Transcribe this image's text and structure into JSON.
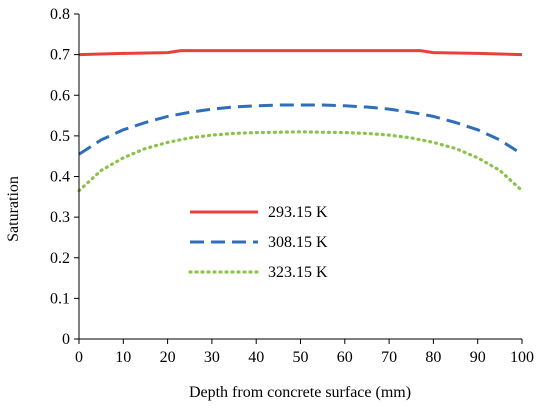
{
  "chart_data": {
    "type": "line",
    "title": "",
    "xlabel": "Depth from concrete surface (mm)",
    "ylabel": "Saturation",
    "xlim": [
      0,
      100
    ],
    "ylim": [
      0,
      0.8
    ],
    "xticks": [
      0,
      10,
      20,
      30,
      40,
      50,
      60,
      70,
      80,
      90,
      100
    ],
    "yticks": [
      0,
      0.1,
      0.2,
      0.3,
      0.4,
      0.5,
      0.6,
      0.7,
      0.8
    ],
    "ytick_labels": [
      "0",
      "0.1",
      "0.2",
      "0.3",
      "0.4",
      "0.5",
      "0.6",
      "0.7",
      "0.8"
    ],
    "grid": false,
    "legend_position": "left-lower-middle",
    "series": [
      {
        "name": "293.15 K",
        "color": "#e8413c",
        "dash": "solid",
        "x": [
          0,
          10,
          20,
          23,
          30,
          40,
          50,
          60,
          70,
          77,
          80,
          90,
          100
        ],
        "y": [
          0.7,
          0.703,
          0.705,
          0.71,
          0.71,
          0.71,
          0.71,
          0.71,
          0.71,
          0.71,
          0.705,
          0.703,
          0.7
        ]
      },
      {
        "name": "308.15 K",
        "color": "#2f6fba",
        "dash": "dashed",
        "x": [
          0,
          5,
          10,
          15,
          20,
          25,
          30,
          35,
          40,
          45,
          50,
          55,
          60,
          65,
          70,
          75,
          80,
          85,
          90,
          95,
          100
        ],
        "y": [
          0.455,
          0.49,
          0.515,
          0.533,
          0.548,
          0.558,
          0.566,
          0.571,
          0.574,
          0.576,
          0.576,
          0.576,
          0.574,
          0.571,
          0.566,
          0.558,
          0.548,
          0.533,
          0.515,
          0.49,
          0.455
        ]
      },
      {
        "name": "323.15 K",
        "color": "#8bc34a",
        "dash": "dotted",
        "x": [
          0,
          5,
          10,
          15,
          20,
          25,
          30,
          35,
          40,
          45,
          50,
          55,
          60,
          65,
          70,
          75,
          80,
          85,
          90,
          95,
          100
        ],
        "y": [
          0.365,
          0.415,
          0.446,
          0.469,
          0.484,
          0.495,
          0.502,
          0.506,
          0.508,
          0.509,
          0.51,
          0.509,
          0.508,
          0.506,
          0.502,
          0.495,
          0.484,
          0.469,
          0.446,
          0.415,
          0.365
        ]
      }
    ]
  }
}
